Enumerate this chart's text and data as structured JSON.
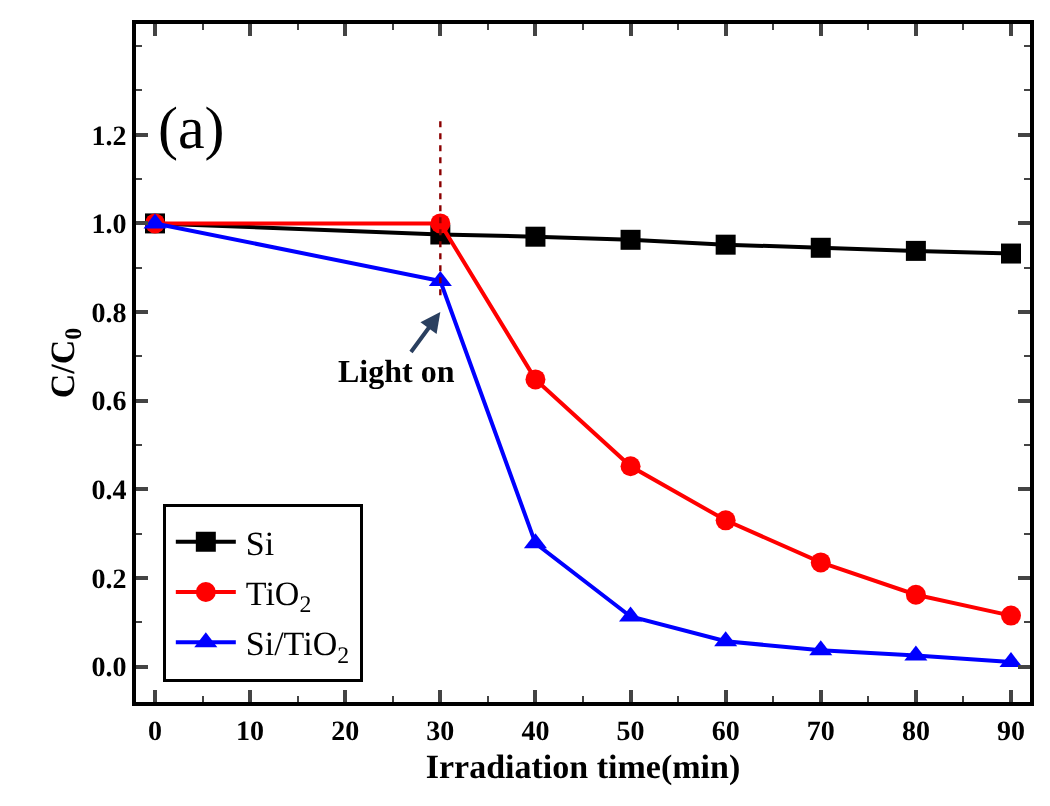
{
  "chart_data": {
    "type": "line",
    "x": [
      0,
      30,
      40,
      50,
      60,
      70,
      80,
      90
    ],
    "series": [
      {
        "name": "Si",
        "color": "#000000",
        "marker": "square",
        "values": [
          1.0,
          0.975,
          0.97,
          0.963,
          0.952,
          0.945,
          0.938,
          0.932
        ]
      },
      {
        "name": "TiO$_{2}$",
        "color": "#ff0000",
        "marker": "circle",
        "values": [
          1.0,
          1.0,
          0.648,
          0.452,
          0.33,
          0.235,
          0.162,
          0.115
        ]
      },
      {
        "name": "Si/TiO$_{2}$",
        "color": "#0000ff",
        "marker": "triangle",
        "values": [
          1.0,
          0.87,
          0.278,
          0.113,
          0.057,
          0.037,
          0.025,
          0.01
        ]
      }
    ],
    "xlabel": "Irradiation time(min)",
    "ylabel": "C/C$_{0}$",
    "xlim": [
      -2,
      92
    ],
    "ylim": [
      -0.08,
      1.45
    ],
    "xticks": [
      0,
      10,
      20,
      30,
      40,
      50,
      60,
      70,
      80,
      90
    ],
    "yticks": [
      {
        "value": 0,
        "label": "0.0"
      },
      0.2,
      0.4,
      0.6,
      0.8,
      {
        "value": 1,
        "label": "1.0"
      },
      1.2
    ],
    "ref_lines": [
      {
        "axis": "x",
        "value": 30,
        "color": "#8b0000",
        "line_style": "dotted"
      }
    ],
    "annotations": [
      "(a)",
      {
        "text": "Light on",
        "x": 30,
        "y": 0.8
      }
    ],
    "legend": "bottom left"
  }
}
